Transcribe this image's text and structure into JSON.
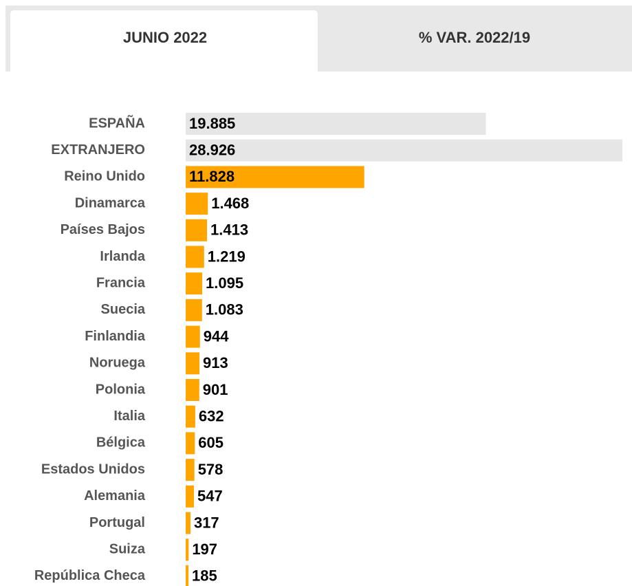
{
  "tabs": [
    "JUNIO 2022",
    "% VAR. 2022/19"
  ],
  "chart_data": {
    "type": "bar",
    "categories": [
      "ESPAÑA",
      "EXTRANJERO",
      "Reino Unido",
      "Dinamarca",
      "Países Bajos",
      "Irlanda",
      "Francia",
      "Suecia",
      "Finlandia",
      "Noruega",
      "Polonia",
      "Italia",
      "Bélgica",
      "Estados Unidos",
      "Alemania",
      "Portugal",
      "Suiza",
      "República Checa"
    ],
    "values": [
      19885,
      28926,
      11828,
      1468,
      1413,
      1219,
      1095,
      1083,
      944,
      913,
      901,
      632,
      605,
      578,
      547,
      317,
      197,
      185
    ],
    "value_labels": [
      "19.885",
      "28.926",
      "11.828",
      "1.468",
      "1.413",
      "1.219",
      "1.095",
      "1.083",
      "944",
      "913",
      "901",
      "632",
      "605",
      "578",
      "547",
      "317",
      "197",
      "185"
    ],
    "colors": [
      "#e6e6e6",
      "#e6e6e6",
      "#ffa500",
      "#ffa500",
      "#ffa500",
      "#ffa500",
      "#ffa500",
      "#ffa500",
      "#ffa500",
      "#ffa500",
      "#ffa500",
      "#ffa500",
      "#ffa500",
      "#ffa500",
      "#ffa500",
      "#ffa500",
      "#ffa500",
      "#ffa500"
    ]
  }
}
